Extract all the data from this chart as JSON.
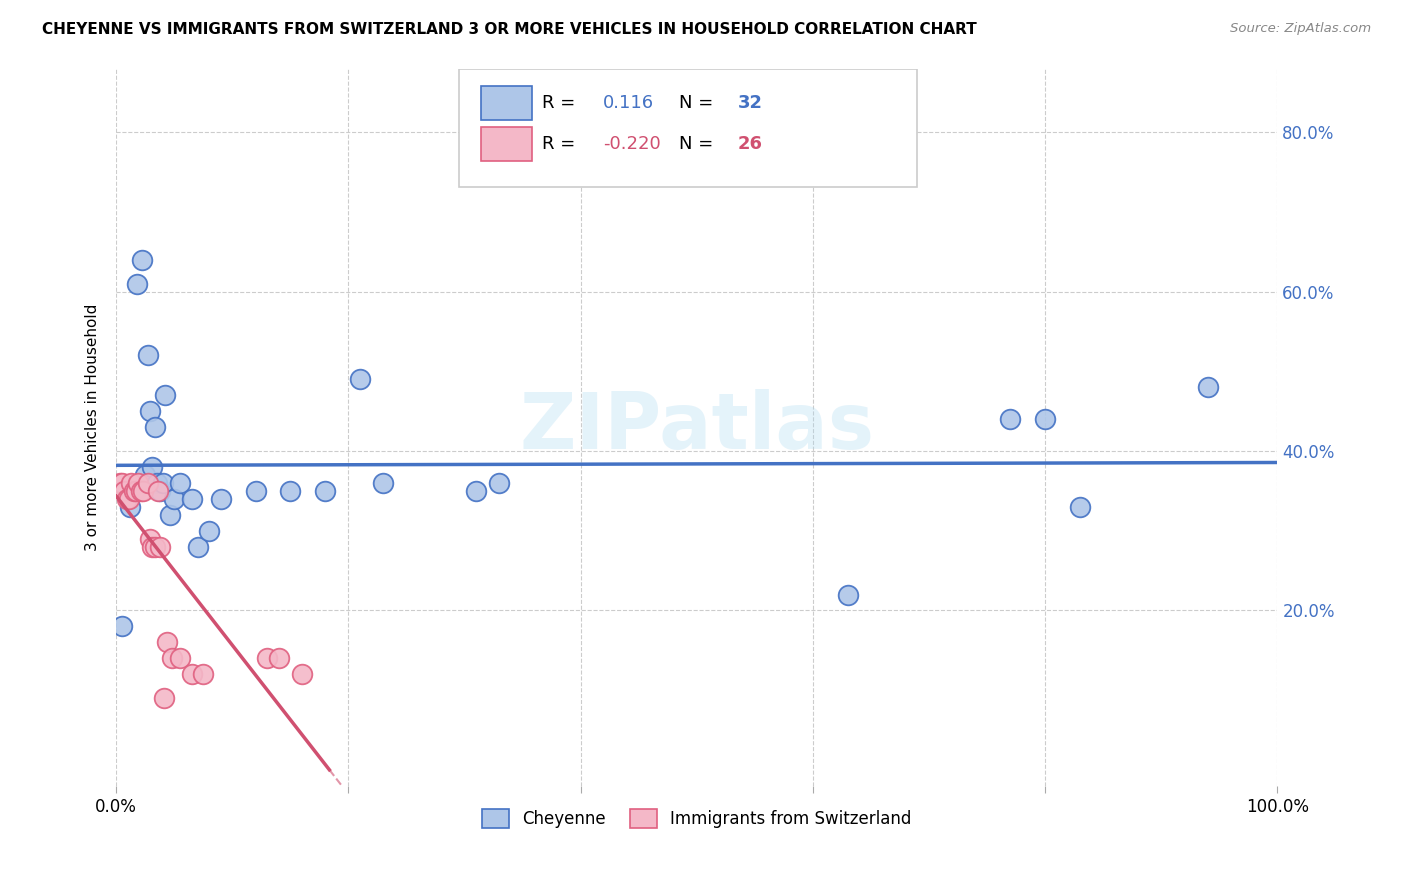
{
  "title": "CHEYENNE VS IMMIGRANTS FROM SWITZERLAND 3 OR MORE VEHICLES IN HOUSEHOLD CORRELATION CHART",
  "source": "Source: ZipAtlas.com",
  "ylabel": "3 or more Vehicles in Household",
  "xlim": [
    0.0,
    1.0
  ],
  "ylim": [
    -0.02,
    0.88
  ],
  "cheyenne_color": "#aec6e8",
  "cheyenne_edge": "#4472C4",
  "immigrants_color": "#f4b8c8",
  "immigrants_edge": "#E06080",
  "cheyenne_R": 0.116,
  "cheyenne_N": 32,
  "immigrants_R": -0.22,
  "immigrants_N": 26,
  "cheyenne_line_color": "#4472C4",
  "immigrants_line_color": "#D05070",
  "watermark": "ZIPatlas",
  "cheyenne_x": [
    0.005,
    0.012,
    0.018,
    0.022,
    0.025,
    0.027,
    0.029,
    0.031,
    0.033,
    0.035,
    0.038,
    0.04,
    0.042,
    0.046,
    0.05,
    0.055,
    0.065,
    0.07,
    0.08,
    0.09,
    0.12,
    0.15,
    0.18,
    0.21,
    0.23,
    0.31,
    0.33,
    0.63,
    0.77,
    0.8,
    0.83,
    0.94
  ],
  "cheyenne_y": [
    0.18,
    0.33,
    0.61,
    0.64,
    0.37,
    0.52,
    0.45,
    0.38,
    0.43,
    0.36,
    0.35,
    0.36,
    0.47,
    0.32,
    0.34,
    0.36,
    0.34,
    0.28,
    0.3,
    0.34,
    0.35,
    0.35,
    0.35,
    0.49,
    0.36,
    0.35,
    0.36,
    0.22,
    0.44,
    0.44,
    0.33,
    0.48
  ],
  "immigrants_x": [
    0.003,
    0.005,
    0.007,
    0.009,
    0.011,
    0.013,
    0.015,
    0.017,
    0.019,
    0.021,
    0.023,
    0.027,
    0.029,
    0.031,
    0.033,
    0.036,
    0.038,
    0.041,
    0.044,
    0.048,
    0.055,
    0.065,
    0.075,
    0.13,
    0.14,
    0.16
  ],
  "immigrants_y": [
    0.36,
    0.36,
    0.35,
    0.34,
    0.34,
    0.36,
    0.35,
    0.35,
    0.36,
    0.35,
    0.35,
    0.36,
    0.29,
    0.28,
    0.28,
    0.35,
    0.28,
    0.09,
    0.16,
    0.14,
    0.14,
    0.12,
    0.12,
    0.14,
    0.14,
    0.12
  ]
}
